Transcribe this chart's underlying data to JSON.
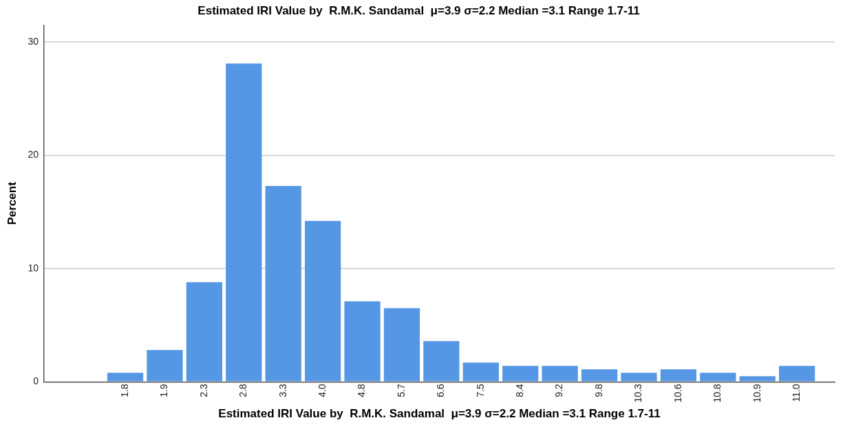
{
  "chart_data": {
    "type": "bar",
    "title": "Estimated IRI Value by  R.M.K. Sandamal  μ=3.9 σ=2.2 Median =3.1 Range 1.7-11",
    "xlabel": "Estimated IRI Value by  R.M.K. Sandamal  μ=3.9 σ=2.2 Median =3.1 Range 1.7-11",
    "ylabel": "Percent",
    "categories": [
      "1.8",
      "1.9",
      "2.3",
      "2.8",
      "3.3",
      "4.0",
      "4.8",
      "5.7",
      "6.6",
      "7.5",
      "8.4",
      "9.2",
      "9.8",
      "10.3",
      "10.6",
      "10.8",
      "10.9",
      "11.0"
    ],
    "values": [
      0.8,
      2.8,
      8.8,
      28.1,
      17.3,
      14.2,
      7.1,
      6.5,
      3.6,
      1.7,
      1.4,
      1.4,
      1.1,
      0.8,
      1.1,
      0.8,
      0.5,
      1.4
    ],
    "color": "#5596e5",
    "ylim": [
      0,
      31.5
    ],
    "yticks": [
      0,
      10,
      20,
      30
    ],
    "grid": "y",
    "legend": false
  }
}
